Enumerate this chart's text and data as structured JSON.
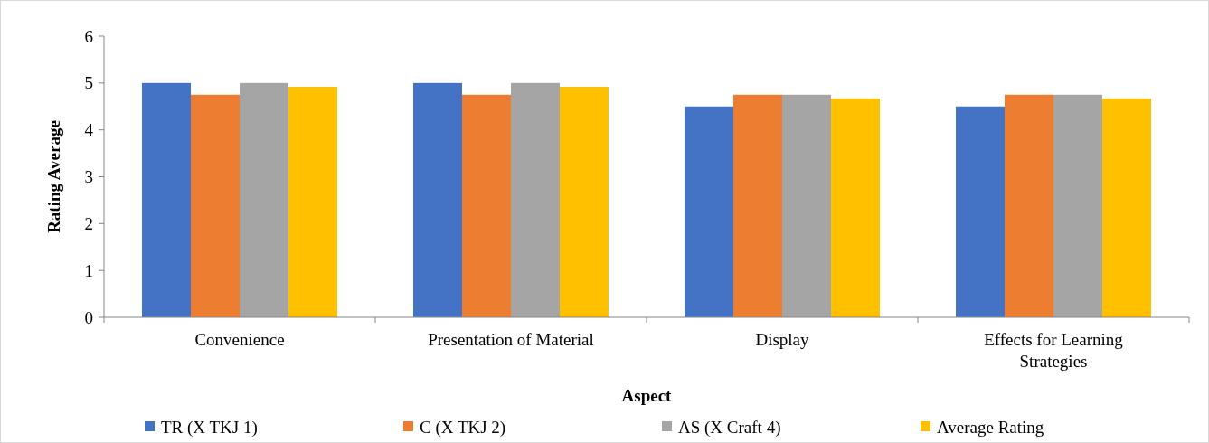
{
  "chart_data": {
    "type": "bar",
    "xlabel": "Aspect",
    "ylabel": "Rating Average",
    "categories": [
      "Convenience",
      "Presentation of Material",
      "Display",
      "Effects for Learning Strategies"
    ],
    "series": [
      {
        "name": "TR (X TKJ 1)",
        "color": "#4472c4",
        "values": [
          5,
          5,
          4.5,
          4.5
        ]
      },
      {
        "name": "C (X TKJ 2)",
        "color": "#ed7d31",
        "values": [
          4.75,
          4.75,
          4.75,
          4.75
        ]
      },
      {
        "name": "AS (X Craft 4)",
        "color": "#a5a5a5",
        "values": [
          5,
          5,
          4.75,
          4.75
        ]
      },
      {
        "name": "Average Rating",
        "color": "#ffc000",
        "values": [
          4.92,
          4.92,
          4.67,
          4.67
        ]
      }
    ],
    "ylim": [
      0,
      6
    ],
    "yticks": [
      0,
      1,
      2,
      3,
      4,
      5,
      6
    ],
    "grid": false,
    "legend": "bottom"
  }
}
